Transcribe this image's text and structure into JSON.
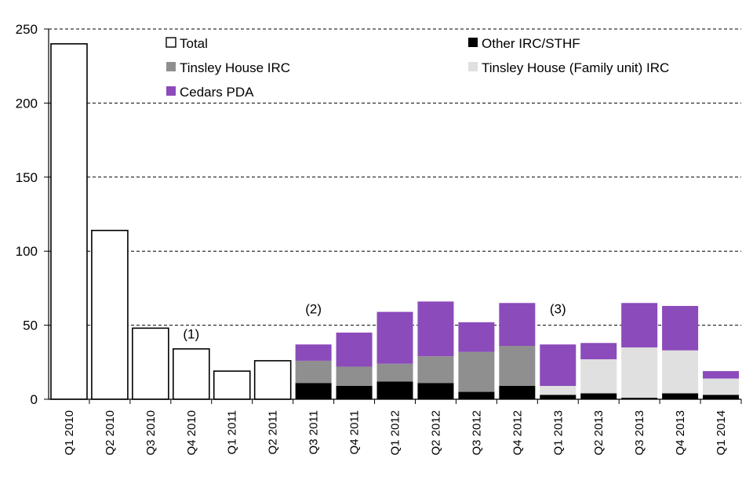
{
  "chart_data": {
    "type": "bar",
    "stacked": true,
    "title": "",
    "xlabel": "",
    "ylabel": "",
    "ylim": [
      0,
      250
    ],
    "yticks": [
      0,
      50,
      100,
      150,
      200,
      250
    ],
    "grid": "horizontal dashed",
    "legend_position": "top",
    "categories": [
      "Q1 2010",
      "Q2 2010",
      "Q3 2010",
      "Q4 2010",
      "Q1 2011",
      "Q2 2011",
      "Q3 2011",
      "Q4 2011",
      "Q1 2012",
      "Q2 2012",
      "Q3 2012",
      "Q4 2012",
      "Q1 2013",
      "Q2 2013",
      "Q3 2013",
      "Q4 2013",
      "Q1 2014"
    ],
    "series": [
      {
        "name": "Total",
        "color": "#ffffff",
        "outline": "#000000",
        "values": [
          240,
          114,
          48,
          34,
          19,
          26,
          0,
          0,
          0,
          0,
          0,
          0,
          0,
          0,
          0,
          0,
          0
        ]
      },
      {
        "name": "Other IRC/STHF",
        "color": "#000000",
        "values": [
          0,
          0,
          0,
          0,
          0,
          0,
          11,
          9,
          12,
          11,
          5,
          9,
          3,
          4,
          1,
          4,
          3
        ]
      },
      {
        "name": "Tinsley House (Family unit) IRC",
        "color": "#e0e0e0",
        "values": [
          0,
          0,
          0,
          0,
          0,
          0,
          0,
          0,
          0,
          0,
          0,
          0,
          6,
          23,
          34,
          29,
          11
        ]
      },
      {
        "name": "Tinsley House IRC",
        "color": "#8f8f8f",
        "values": [
          0,
          0,
          0,
          0,
          0,
          0,
          15,
          13,
          12,
          18,
          27,
          27,
          0,
          0,
          0,
          0,
          0
        ]
      },
      {
        "name": "Cedars PDA",
        "color": "#8b4bbb",
        "values": [
          0,
          0,
          0,
          0,
          0,
          0,
          11,
          23,
          35,
          37,
          20,
          29,
          28,
          11,
          30,
          30,
          5
        ]
      }
    ],
    "legend_order": [
      "Total",
      "Other IRC/STHF",
      "Tinsley House IRC",
      "Tinsley House (Family unit) IRC",
      "Cedars PDA"
    ],
    "annotations": [
      {
        "text": "(1)",
        "category": "Q4 2010",
        "y": 41
      },
      {
        "text": "(2)",
        "category": "Q3 2011",
        "y": 58
      },
      {
        "text": "(3)",
        "category": "Q1 2013",
        "y": 58
      }
    ]
  }
}
